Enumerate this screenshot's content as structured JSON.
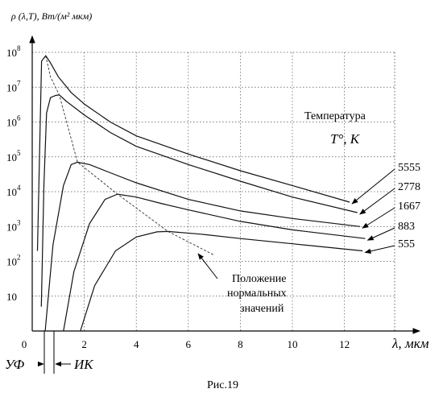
{
  "chart_data": {
    "type": "line",
    "title": "",
    "ylabel": "ρ (λ,T), Вт/(м² мкм)",
    "xlabel": "λ, мкм",
    "ylim": [
      1,
      100000000
    ],
    "y_scale": "log",
    "xlim": [
      0,
      14
    ],
    "x_ticks": [
      {
        "value": 0,
        "label": "0"
      },
      {
        "value": 2,
        "label": "2"
      },
      {
        "value": 4,
        "label": "4"
      },
      {
        "value": 6,
        "label": "6"
      },
      {
        "value": 8,
        "label": "8"
      },
      {
        "value": 10,
        "label": "10"
      },
      {
        "value": 12,
        "label": "12"
      }
    ],
    "y_ticks": [
      {
        "value": 10,
        "base": "10",
        "exp": ""
      },
      {
        "value": 100,
        "base": "10",
        "exp": "2"
      },
      {
        "value": 1000,
        "base": "10",
        "exp": "3"
      },
      {
        "value": 10000,
        "base": "10",
        "exp": "4"
      },
      {
        "value": 100000,
        "base": "10",
        "exp": "5"
      },
      {
        "value": 1000000,
        "base": "10",
        "exp": "6"
      },
      {
        "value": 10000000,
        "base": "10",
        "exp": "7"
      },
      {
        "value": 100000000,
        "base": "10",
        "exp": "8"
      }
    ],
    "grid": "dotted",
    "legend_title": "Температура",
    "legend_unit": "T°, K",
    "series": [
      {
        "name": "5555",
        "points": [
          [
            0.2,
            200
          ],
          [
            0.36,
            56000000
          ],
          [
            0.52,
            80000000
          ],
          [
            0.7,
            50000000
          ],
          [
            1.0,
            20000000
          ],
          [
            1.5,
            7000000
          ],
          [
            2.0,
            3300000
          ],
          [
            3.0,
            1000000
          ],
          [
            4.0,
            400000
          ],
          [
            6.0,
            120000
          ],
          [
            8.0,
            40000
          ],
          [
            10.0,
            15000
          ],
          [
            12.2,
            5000
          ]
        ]
      },
      {
        "name": "2778",
        "points": [
          [
            0.35,
            5
          ],
          [
            0.45,
            15000
          ],
          [
            0.55,
            1800000
          ],
          [
            0.7,
            5000000
          ],
          [
            0.9,
            5800000
          ],
          [
            1.04,
            6000000
          ],
          [
            1.3,
            4000000
          ],
          [
            2.0,
            1600000
          ],
          [
            3.0,
            500000
          ],
          [
            4.0,
            200000
          ],
          [
            6.0,
            60000
          ],
          [
            8.0,
            20000
          ],
          [
            10.0,
            7000
          ],
          [
            12.5,
            2500
          ]
        ]
      },
      {
        "name": "1667",
        "points": [
          [
            0.5,
            1
          ],
          [
            0.8,
            300
          ],
          [
            1.2,
            15000
          ],
          [
            1.5,
            60000
          ],
          [
            1.74,
            70000
          ],
          [
            2.2,
            60000
          ],
          [
            3.0,
            35000
          ],
          [
            4.0,
            18000
          ],
          [
            6.0,
            6000
          ],
          [
            8.0,
            2800
          ],
          [
            10.0,
            1700
          ],
          [
            12.6,
            1000
          ]
        ]
      },
      {
        "name": "883",
        "points": [
          [
            1.2,
            1
          ],
          [
            1.6,
            50
          ],
          [
            2.2,
            1200
          ],
          [
            2.8,
            6000
          ],
          [
            3.28,
            8500
          ],
          [
            4.0,
            7000
          ],
          [
            5.0,
            4500
          ],
          [
            6.0,
            3000
          ],
          [
            8.0,
            1400
          ],
          [
            10.0,
            800
          ],
          [
            12.8,
            450
          ]
        ]
      },
      {
        "name": "555",
        "points": [
          [
            1.85,
            1
          ],
          [
            2.4,
            20
          ],
          [
            3.2,
            200
          ],
          [
            4.0,
            500
          ],
          [
            4.8,
            700
          ],
          [
            5.22,
            720
          ],
          [
            6.5,
            600
          ],
          [
            8.0,
            450
          ],
          [
            10.0,
            320
          ],
          [
            12.7,
            200
          ]
        ]
      }
    ],
    "wien_line": {
      "name": "Положение нормальных значений",
      "points": [
        [
          0.52,
          80000000
        ],
        [
          0.7,
          20000000
        ],
        [
          1.04,
          6000000
        ],
        [
          1.74,
          70000
        ],
        [
          3.28,
          8500
        ],
        [
          5.22,
          720
        ],
        [
          7.0,
          150
        ]
      ]
    },
    "annotation": [
      "Положение",
      "нормальных",
      "значений"
    ],
    "bands": [
      {
        "label": "УФ",
        "range": [
          0,
          0.4
        ]
      },
      {
        "label": "ИК",
        "range": [
          0.75,
          14
        ]
      }
    ]
  },
  "caption": "Рис.19"
}
